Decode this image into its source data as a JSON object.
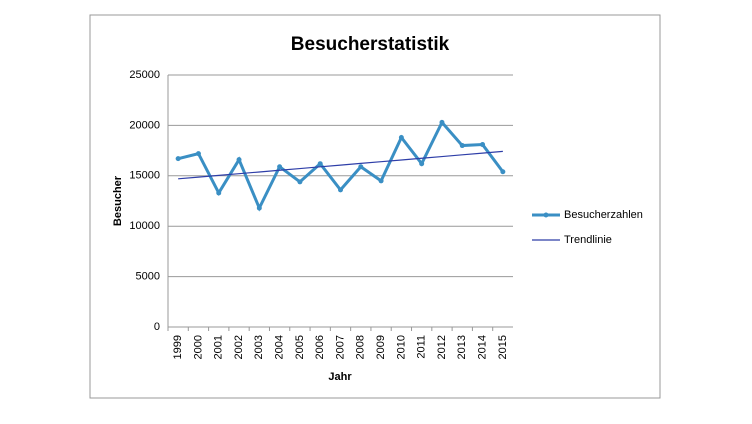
{
  "chart_data": {
    "type": "line",
    "title": "Besucherstatistik",
    "x_label": "Jahr",
    "y_label": "Besucher",
    "categories": [
      "1999",
      "2000",
      "2001",
      "2002",
      "2003",
      "2004",
      "2005",
      "2006",
      "2007",
      "2008",
      "2009",
      "2010",
      "2011",
      "2012",
      "2013",
      "2014",
      "2015"
    ],
    "series": [
      {
        "name": "Besucherzahlen",
        "color": "#3a8fc4",
        "markers": true,
        "values": [
          16700,
          17200,
          13300,
          16600,
          11800,
          15900,
          14400,
          16200,
          13600,
          15900,
          14500,
          18800,
          16200,
          20300,
          18000,
          18100,
          15400
        ]
      },
      {
        "name": "Trendlinie",
        "color": "#2e3ea8",
        "markers": false,
        "values": [
          14700,
          14870,
          15040,
          15210,
          15380,
          15550,
          15720,
          15890,
          16060,
          16230,
          16400,
          16570,
          16740,
          16910,
          17080,
          17250,
          17420
        ]
      }
    ],
    "ylim": [
      0,
      25000
    ],
    "yticks": [
      0,
      5000,
      10000,
      15000,
      20000,
      25000
    ],
    "grid": true,
    "legend": "right"
  }
}
